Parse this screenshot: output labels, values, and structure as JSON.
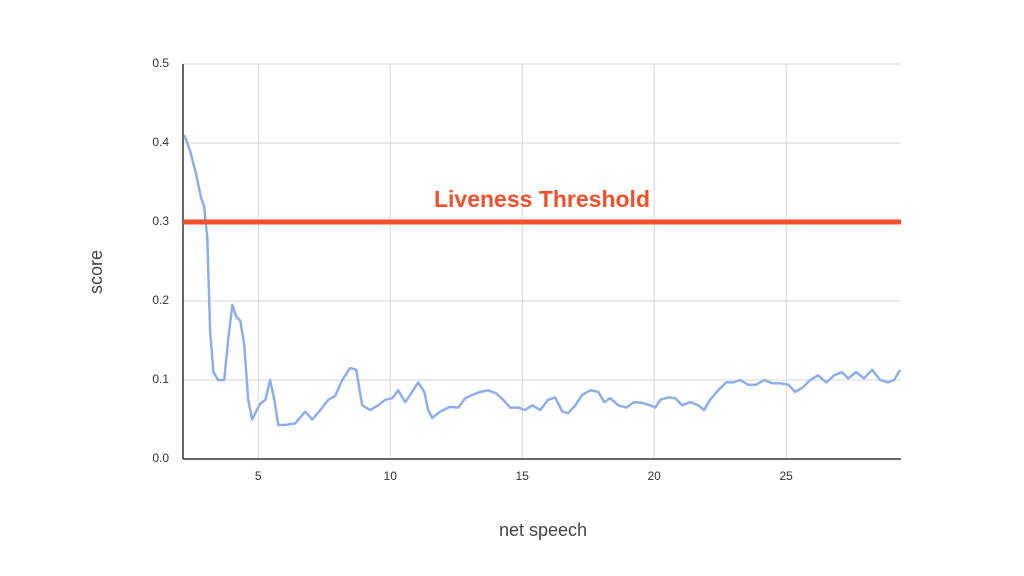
{
  "chart_data": {
    "type": "line",
    "x_label": "net speech",
    "y_label": "score",
    "xlim": [
      2.15,
      29.35
    ],
    "ylim": [
      0,
      0.5
    ],
    "xticks": [
      5,
      10,
      15,
      20,
      25
    ],
    "yticks": [
      {
        "value": 0,
        "label": "0.0"
      },
      0.1,
      0.2,
      0.3,
      0.4,
      0.5
    ],
    "grid": true,
    "threshold": {
      "label": "Liveness Threshold",
      "value": 0.3,
      "color": "#f0502a"
    },
    "series": [
      {
        "color": "#8eaee8",
        "x": [
          2.2,
          2.42,
          2.65,
          2.84,
          2.95,
          3.07,
          3.18,
          3.3,
          3.48,
          3.71,
          3.86,
          4.02,
          4.17,
          4.32,
          4.47,
          4.62,
          4.77,
          4.92,
          5.08,
          5.27,
          5.45,
          5.61,
          5.76,
          6.02,
          6.4,
          6.78,
          7.05,
          7.35,
          7.65,
          7.92,
          8.18,
          8.48,
          8.71,
          8.94,
          9.24,
          9.55,
          9.81,
          10.08,
          10.3,
          10.57,
          10.83,
          11.06,
          11.29,
          11.44,
          11.59,
          11.89,
          12.27,
          12.58,
          12.84,
          13.1,
          13.41,
          13.71,
          14.02,
          14.28,
          14.55,
          14.85,
          15.11,
          15.38,
          15.68,
          15.98,
          16.25,
          16.52,
          16.74,
          17.01,
          17.27,
          17.58,
          17.88,
          18.11,
          18.33,
          18.64,
          18.94,
          19.24,
          19.55,
          19.85,
          20.04,
          20.23,
          20.53,
          20.8,
          21.06,
          21.36,
          21.67,
          21.89,
          22.12,
          22.42,
          22.73,
          22.99,
          23.26,
          23.56,
          23.86,
          24.17,
          24.47,
          24.77,
          25.08,
          25.34,
          25.61,
          25.91,
          26.21,
          26.52,
          26.82,
          27.12,
          27.35,
          27.65,
          27.95,
          28.26,
          28.56,
          28.86,
          29.09,
          29.32
        ],
        "values": [
          0.41,
          0.39,
          0.36,
          0.33,
          0.32,
          0.28,
          0.16,
          0.11,
          0.1,
          0.1,
          0.15,
          0.195,
          0.18,
          0.175,
          0.145,
          0.075,
          0.05,
          0.06,
          0.07,
          0.075,
          0.1,
          0.075,
          0.043,
          0.043,
          0.045,
          0.06,
          0.05,
          0.062,
          0.075,
          0.08,
          0.1,
          0.115,
          0.113,
          0.068,
          0.062,
          0.068,
          0.075,
          0.077,
          0.087,
          0.072,
          0.085,
          0.097,
          0.085,
          0.062,
          0.052,
          0.06,
          0.066,
          0.065,
          0.077,
          0.081,
          0.085,
          0.087,
          0.083,
          0.075,
          0.065,
          0.065,
          0.062,
          0.068,
          0.062,
          0.075,
          0.078,
          0.06,
          0.058,
          0.068,
          0.081,
          0.087,
          0.085,
          0.072,
          0.077,
          0.068,
          0.065,
          0.072,
          0.071,
          0.068,
          0.065,
          0.075,
          0.078,
          0.077,
          0.068,
          0.072,
          0.068,
          0.062,
          0.075,
          0.087,
          0.097,
          0.097,
          0.1,
          0.094,
          0.094,
          0.1,
          0.096,
          0.096,
          0.094,
          0.085,
          0.09,
          0.1,
          0.106,
          0.097,
          0.106,
          0.11,
          0.102,
          0.11,
          0.102,
          0.113,
          0.1,
          0.097,
          0.1,
          0.113
        ]
      }
    ]
  }
}
